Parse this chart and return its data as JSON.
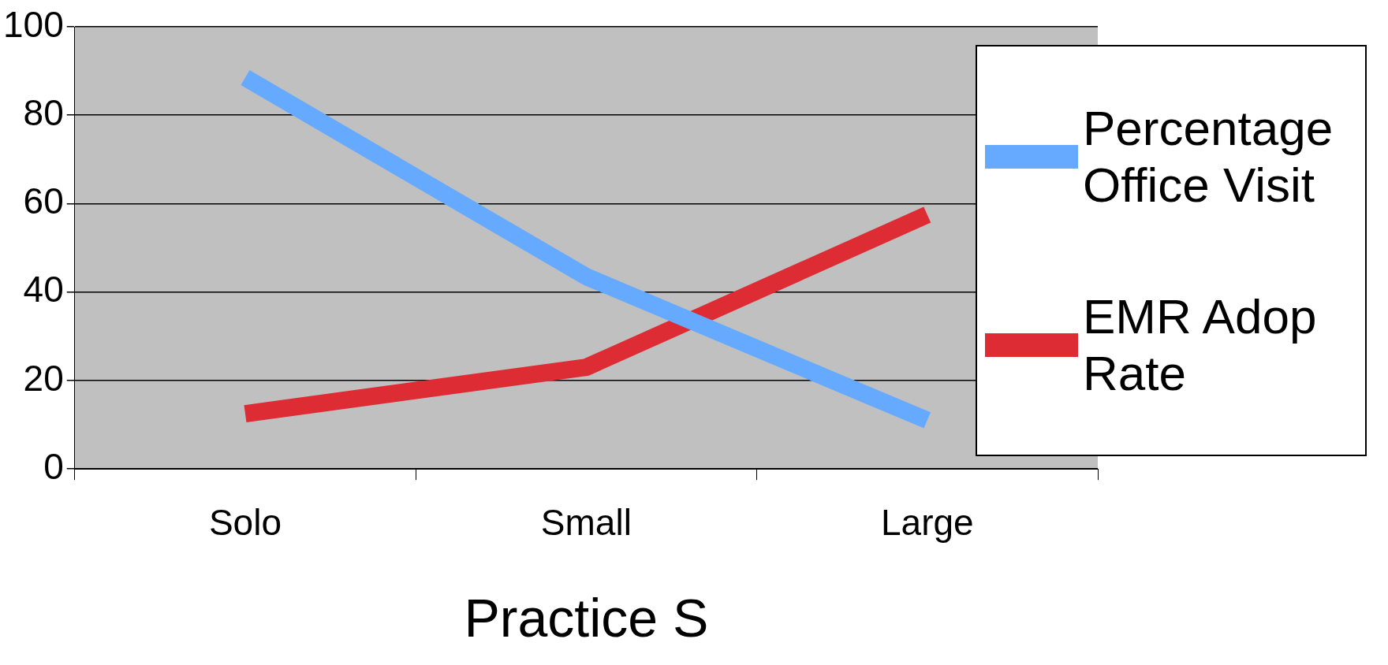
{
  "chart_data": {
    "type": "line",
    "xlabel": "Practice S",
    "categories": [
      "Solo",
      "Small",
      "Large"
    ],
    "series": [
      {
        "name": "Percentage Office Visit",
        "color": "#66aaff",
        "values": [
          88.5,
          43.5,
          11
        ]
      },
      {
        "name": "EMR Adop Rate",
        "color": "#dd2c33",
        "values": [
          12.5,
          23,
          57.5
        ]
      }
    ],
    "ylim": [
      0,
      100
    ],
    "yticks": [
      0,
      20,
      40,
      60,
      80,
      100
    ],
    "grid": "y",
    "legend": "right",
    "marker": "none"
  }
}
